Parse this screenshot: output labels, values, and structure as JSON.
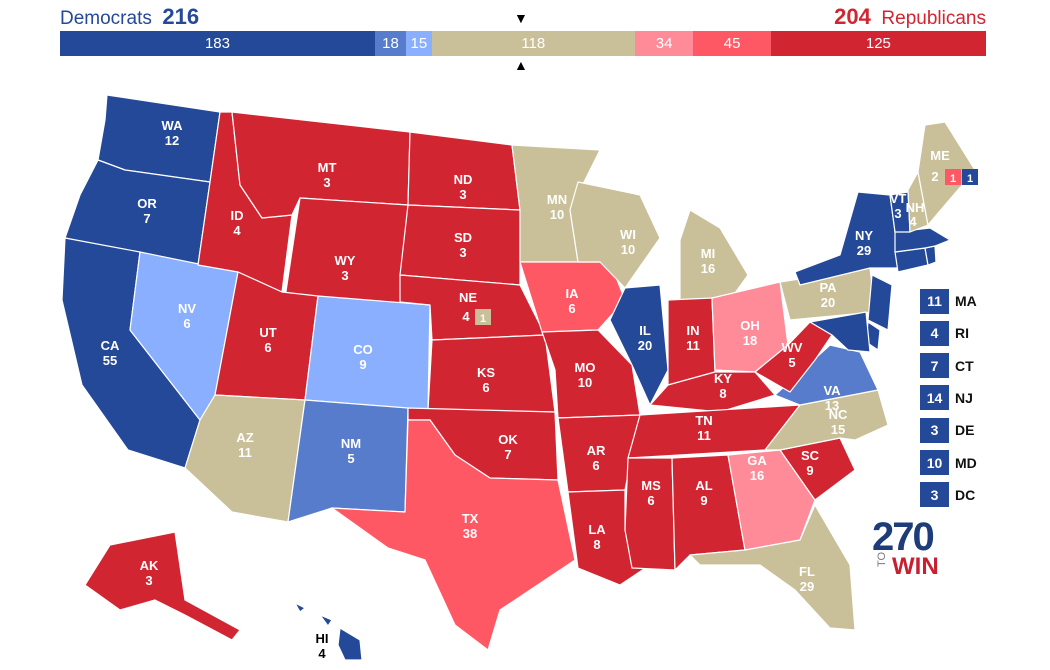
{
  "header": {
    "dem_label": "Democrats",
    "dem_total": "216",
    "rep_total": "204",
    "rep_label": "Republicans"
  },
  "bar": [
    {
      "value": "183",
      "color": "#244999",
      "n": 183
    },
    {
      "value": "18",
      "color": "#577ccc",
      "n": 18
    },
    {
      "value": "15",
      "color": "#8aafff",
      "n": 15
    },
    {
      "value": "118",
      "color": "#c9bf98",
      "n": 118
    },
    {
      "value": "34",
      "color": "#ff8b98",
      "n": 34
    },
    {
      "value": "45",
      "color": "#ff5865",
      "n": 45
    },
    {
      "value": "125",
      "color": "#d22532",
      "n": 125
    }
  ],
  "markers": {
    "top": "▼",
    "bottom": "▲"
  },
  "colors": {
    "safe_d": "#244999",
    "likely_d": "#577ccc",
    "lean_d": "#8aafff",
    "tossup": "#c9bf98",
    "lean_r": "#ff8b98",
    "likely_r": "#ff5865",
    "safe_r": "#d22532"
  },
  "states": [
    {
      "abbr": "WA",
      "ev": "12"
    },
    {
      "abbr": "OR",
      "ev": "7"
    },
    {
      "abbr": "CA",
      "ev": "55"
    },
    {
      "abbr": "NV",
      "ev": "6"
    },
    {
      "abbr": "ID",
      "ev": "4"
    },
    {
      "abbr": "MT",
      "ev": "3"
    },
    {
      "abbr": "WY",
      "ev": "3"
    },
    {
      "abbr": "UT",
      "ev": "6"
    },
    {
      "abbr": "AZ",
      "ev": "11"
    },
    {
      "abbr": "CO",
      "ev": "9"
    },
    {
      "abbr": "NM",
      "ev": "5"
    },
    {
      "abbr": "ND",
      "ev": "3"
    },
    {
      "abbr": "SD",
      "ev": "3"
    },
    {
      "abbr": "NE",
      "ev": "4"
    },
    {
      "abbr": "KS",
      "ev": "6"
    },
    {
      "abbr": "OK",
      "ev": "7"
    },
    {
      "abbr": "TX",
      "ev": "38"
    },
    {
      "abbr": "MN",
      "ev": "10"
    },
    {
      "abbr": "IA",
      "ev": "6"
    },
    {
      "abbr": "MO",
      "ev": "10"
    },
    {
      "abbr": "AR",
      "ev": "6"
    },
    {
      "abbr": "LA",
      "ev": "8"
    },
    {
      "abbr": "WI",
      "ev": "10"
    },
    {
      "abbr": "IL",
      "ev": "20"
    },
    {
      "abbr": "MI",
      "ev": "16"
    },
    {
      "abbr": "IN",
      "ev": "11"
    },
    {
      "abbr": "OH",
      "ev": "18"
    },
    {
      "abbr": "KY",
      "ev": "8"
    },
    {
      "abbr": "TN",
      "ev": "11"
    },
    {
      "abbr": "MS",
      "ev": "6"
    },
    {
      "abbr": "AL",
      "ev": "9"
    },
    {
      "abbr": "GA",
      "ev": "16"
    },
    {
      "abbr": "FL",
      "ev": "29"
    },
    {
      "abbr": "SC",
      "ev": "9"
    },
    {
      "abbr": "NC",
      "ev": "15"
    },
    {
      "abbr": "VA",
      "ev": "13"
    },
    {
      "abbr": "WV",
      "ev": "5"
    },
    {
      "abbr": "PA",
      "ev": "20"
    },
    {
      "abbr": "NY",
      "ev": "29"
    },
    {
      "abbr": "VT",
      "ev": "3"
    },
    {
      "abbr": "NH",
      "ev": "4"
    },
    {
      "abbr": "ME",
      "ev": "2"
    },
    {
      "abbr": "AK",
      "ev": "3"
    },
    {
      "abbr": "HI",
      "ev": "4"
    }
  ],
  "district_boxes": {
    "ne": "1",
    "me_r": "1",
    "me_d": "1"
  },
  "northeast": [
    {
      "ev": "11",
      "abbr": "MA"
    },
    {
      "ev": "4",
      "abbr": "RI"
    },
    {
      "ev": "7",
      "abbr": "CT"
    },
    {
      "ev": "14",
      "abbr": "NJ"
    },
    {
      "ev": "3",
      "abbr": "DE"
    },
    {
      "ev": "10",
      "abbr": "MD"
    },
    {
      "ev": "3",
      "abbr": "DC"
    }
  ],
  "logo": {
    "number": "270",
    "to": "TO",
    "win": "WIN"
  }
}
